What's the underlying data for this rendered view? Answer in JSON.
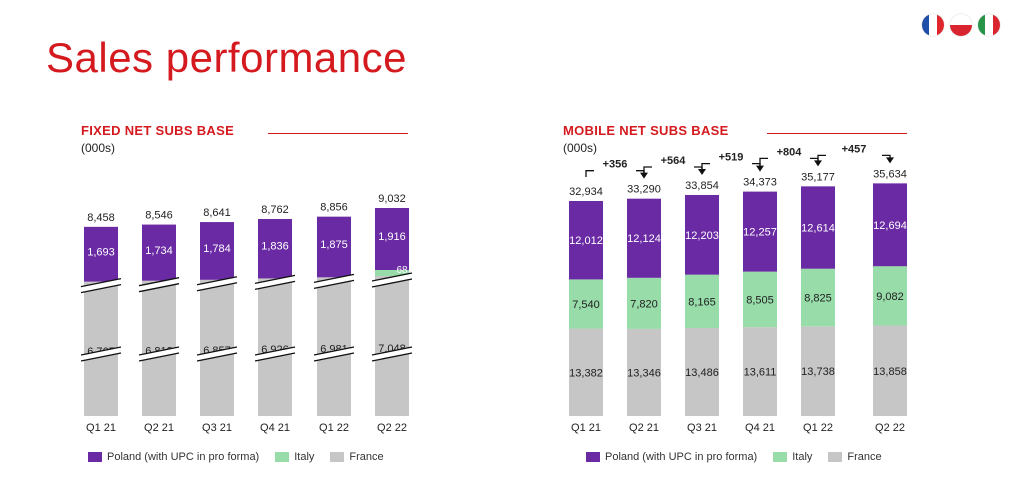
{
  "page_title": "Sales performance",
  "flags": [
    "flag-france-icon",
    "flag-poland-icon",
    "flag-italy-icon"
  ],
  "colors": {
    "poland": "#6a2aa3",
    "italy": "#97dca9",
    "france": "#c6c6c6",
    "accent": "#d51a1f"
  },
  "legend": {
    "poland": "Poland (with UPC in pro forma)",
    "italy": "Italy",
    "france": "France"
  },
  "chart_data": [
    {
      "type": "bar",
      "stacked": true,
      "title": "FIXED NET SUBS BASE",
      "subtitle": "(000s)",
      "categories": [
        "Q1 21",
        "Q2 21",
        "Q3 21",
        "Q4 21",
        "Q1 22",
        "Q2 22"
      ],
      "totals": [
        8458,
        8546,
        8641,
        8762,
        8856,
        9032
      ],
      "series": [
        {
          "name": "France",
          "values": [
            6765,
            6812,
            6857,
            6926,
            6981,
            7048
          ]
        },
        {
          "name": "Italy",
          "values": [
            0,
            0,
            0,
            0,
            0,
            68
          ]
        },
        {
          "name": "Poland (with UPC in pro forma)",
          "values": [
            1693,
            1734,
            1784,
            1836,
            1875,
            1916
          ]
        }
      ],
      "labels": {
        "france": [
          "6,765",
          "6,812",
          "6,857",
          "6,926",
          "6,981",
          "7,048"
        ],
        "italy": [
          "",
          "",
          "",
          "",
          "",
          "68"
        ],
        "poland": [
          "1,693",
          "1,734",
          "1,784",
          "1,836",
          "1,875",
          "1,916"
        ],
        "totals": [
          "8,458",
          "8,546",
          "8,641",
          "8,762",
          "8,856",
          "9,032"
        ]
      },
      "axis_break": true
    },
    {
      "type": "bar",
      "stacked": true,
      "title": "MOBILE NET SUBS BASE",
      "subtitle": "(000s)",
      "categories": [
        "Q1 21",
        "Q2 21",
        "Q3 21",
        "Q4 21",
        "Q1 22",
        "Q2 22"
      ],
      "totals": [
        32934,
        33290,
        33854,
        34373,
        35177,
        35634
      ],
      "series": [
        {
          "name": "France",
          "values": [
            13382,
            13346,
            13486,
            13611,
            13738,
            13858
          ]
        },
        {
          "name": "Italy",
          "values": [
            7540,
            7820,
            8165,
            8505,
            8825,
            9082
          ]
        },
        {
          "name": "Poland (with UPC in pro forma)",
          "values": [
            12012,
            12124,
            12203,
            12257,
            12614,
            12694
          ]
        }
      ],
      "labels": {
        "france": [
          "13,382",
          "13,346",
          "13,486",
          "13,611",
          "13,738",
          "13,858"
        ],
        "italy": [
          "7,540",
          "7,820",
          "8,165",
          "8,505",
          "8,825",
          "9,082"
        ],
        "poland": [
          "12,012",
          "12,124",
          "12,203",
          "12,257",
          "12,614",
          "12,694"
        ],
        "totals": [
          "32,934",
          "33,290",
          "33,854",
          "34,373",
          "35,177",
          "35,634"
        ]
      },
      "increments": [
        "+356",
        "+564",
        "+519",
        "+804",
        "+457"
      ]
    }
  ]
}
